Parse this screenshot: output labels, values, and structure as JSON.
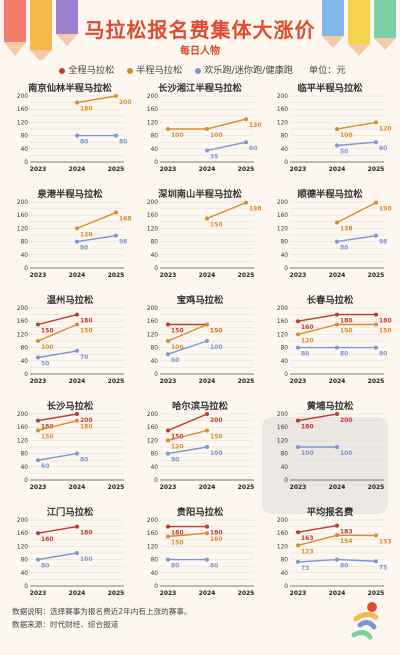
{
  "header": {
    "title": "马拉松报名费集体大涨价",
    "subtitle": "每日人物"
  },
  "legend": {
    "full": "全程马拉松",
    "half": "半程马拉松",
    "fun": "欢乐跑/迷你跑/健康跑",
    "unit": "单位：元"
  },
  "colors": {
    "full": "#c0392b",
    "half": "#d98b2b",
    "fun": "#7b96d4",
    "grid": "#dcdcdc",
    "title": "#e24a2f"
  },
  "footer": {
    "note": "数据说明：选择赛事为报名费近2年内有上涨的赛事。",
    "source": "数据来源：时代财经、综合报道"
  },
  "chart_data": [
    {
      "type": "line",
      "title": "南京仙林半程马拉松",
      "x": [
        "2023",
        "2024",
        "2025"
      ],
      "ylim": [
        0,
        200
      ],
      "yticks": [
        0,
        20,
        40,
        60,
        80,
        100,
        120,
        140,
        160,
        180,
        200
      ],
      "series": [
        {
          "key": "half",
          "values": [
            null,
            180,
            200
          ]
        },
        {
          "key": "fun",
          "values": [
            null,
            80,
            80
          ]
        }
      ]
    },
    {
      "type": "line",
      "title": "长沙湘江半程马拉松",
      "x": [
        "2023",
        "2024",
        "2025"
      ],
      "ylim": [
        0,
        200
      ],
      "yticks": [
        0,
        20,
        40,
        60,
        80,
        100,
        120,
        140,
        160,
        180,
        200
      ],
      "series": [
        {
          "key": "half",
          "values": [
            100,
            100,
            130
          ]
        },
        {
          "key": "fun",
          "values": [
            null,
            35,
            60
          ]
        }
      ]
    },
    {
      "type": "line",
      "title": "临平半程马拉松",
      "x": [
        "2023",
        "2024",
        "2025"
      ],
      "ylim": [
        0,
        200
      ],
      "yticks": [
        0,
        20,
        40,
        60,
        80,
        100,
        120,
        140,
        160,
        180,
        200
      ],
      "series": [
        {
          "key": "half",
          "values": [
            null,
            100,
            120
          ]
        },
        {
          "key": "fun",
          "values": [
            null,
            50,
            60
          ]
        }
      ]
    },
    {
      "type": "line",
      "title": "泉港半程马拉松",
      "x": [
        "2023",
        "2024",
        "2025"
      ],
      "ylim": [
        0,
        200
      ],
      "yticks": [
        0,
        20,
        40,
        60,
        80,
        100,
        120,
        140,
        160,
        180,
        200
      ],
      "series": [
        {
          "key": "half",
          "values": [
            null,
            120,
            168
          ]
        },
        {
          "key": "fun",
          "values": [
            null,
            80,
            98
          ]
        }
      ]
    },
    {
      "type": "line",
      "title": "深圳南山半程马拉松",
      "x": [
        "2023",
        "2024",
        "2025"
      ],
      "ylim": [
        0,
        200
      ],
      "yticks": [
        0,
        20,
        40,
        60,
        80,
        100,
        120,
        140,
        160,
        180,
        200
      ],
      "series": [
        {
          "key": "half",
          "values": [
            null,
            150,
            198
          ]
        }
      ]
    },
    {
      "type": "line",
      "title": "顺德半程马拉松",
      "x": [
        "2023",
        "2024",
        "2025"
      ],
      "ylim": [
        0,
        200
      ],
      "yticks": [
        0,
        20,
        40,
        60,
        80,
        100,
        120,
        140,
        160,
        180,
        200
      ],
      "series": [
        {
          "key": "half",
          "values": [
            null,
            138,
            198
          ]
        },
        {
          "key": "fun",
          "values": [
            null,
            80,
            98
          ]
        }
      ]
    },
    {
      "type": "line",
      "title": "温州马拉松",
      "x": [
        "2023",
        "2024"
      ],
      "ylim": [
        0,
        200
      ],
      "yticks": [
        0,
        20,
        40,
        60,
        80,
        100,
        120,
        140,
        160,
        180,
        200
      ],
      "series": [
        {
          "key": "full",
          "values": [
            150,
            180
          ]
        },
        {
          "key": "half",
          "values": [
            100,
            150
          ]
        },
        {
          "key": "fun",
          "values": [
            50,
            70
          ]
        }
      ]
    },
    {
      "type": "line",
      "title": "宝鸡马拉松",
      "x": [
        "2023",
        "2024"
      ],
      "ylim": [
        0,
        200
      ],
      "yticks": [
        0,
        20,
        40,
        60,
        80,
        100,
        120,
        140,
        160,
        180,
        200
      ],
      "series": [
        {
          "key": "full",
          "values": [
            150,
            150
          ]
        },
        {
          "key": "half",
          "values": [
            100,
            150
          ]
        },
        {
          "key": "fun",
          "values": [
            60,
            100
          ]
        }
      ]
    },
    {
      "type": "line",
      "title": "长春马拉松",
      "x": [
        "2023",
        "2024",
        "2025"
      ],
      "ylim": [
        0,
        200
      ],
      "yticks": [
        0,
        20,
        40,
        60,
        80,
        100,
        120,
        140,
        160,
        180,
        200
      ],
      "series": [
        {
          "key": "full",
          "values": [
            160,
            180,
            180
          ]
        },
        {
          "key": "half",
          "values": [
            120,
            150,
            150
          ]
        },
        {
          "key": "fun",
          "values": [
            80,
            80,
            80
          ]
        }
      ]
    },
    {
      "type": "line",
      "title": "长沙马拉松",
      "x": [
        "2023",
        "2024"
      ],
      "ylim": [
        0,
        200
      ],
      "yticks": [
        0,
        20,
        40,
        60,
        80,
        100,
        120,
        140,
        160,
        180,
        200
      ],
      "series": [
        {
          "key": "full",
          "values": [
            180,
            200
          ]
        },
        {
          "key": "half",
          "values": [
            150,
            180
          ]
        },
        {
          "key": "fun",
          "values": [
            60,
            80
          ]
        }
      ]
    },
    {
      "type": "line",
      "title": "哈尔滨马拉松",
      "x": [
        "2023",
        "2024"
      ],
      "ylim": [
        0,
        200
      ],
      "yticks": [
        0,
        20,
        40,
        60,
        80,
        100,
        120,
        140,
        160,
        180,
        200
      ],
      "series": [
        {
          "key": "full",
          "values": [
            150,
            200
          ]
        },
        {
          "key": "half",
          "values": [
            120,
            150
          ]
        },
        {
          "key": "fun",
          "values": [
            80,
            100
          ]
        }
      ]
    },
    {
      "type": "line",
      "title": "黄埔马拉松",
      "x": [
        "2023",
        "2024"
      ],
      "ylim": [
        0,
        200
      ],
      "yticks": [
        0,
        20,
        40,
        60,
        80,
        100,
        120,
        140,
        160,
        180,
        200
      ],
      "series": [
        {
          "key": "full",
          "values": [
            180,
            200
          ]
        },
        {
          "key": "fun",
          "values": [
            100,
            100
          ]
        }
      ]
    },
    {
      "type": "line",
      "title": "江门马拉松",
      "x": [
        "2023",
        "2024"
      ],
      "ylim": [
        0,
        200
      ],
      "yticks": [
        0,
        20,
        40,
        60,
        80,
        100,
        120,
        140,
        160,
        180,
        200
      ],
      "series": [
        {
          "key": "full",
          "values": [
            160,
            180
          ]
        },
        {
          "key": "fun",
          "values": [
            80,
            100
          ]
        }
      ]
    },
    {
      "type": "line",
      "title": "贵阳马拉松",
      "x": [
        "2023",
        "2024"
      ],
      "ylim": [
        0,
        200
      ],
      "yticks": [
        0,
        20,
        40,
        60,
        80,
        100,
        120,
        140,
        160,
        180,
        200
      ],
      "series": [
        {
          "key": "full",
          "values": [
            180,
            180
          ]
        },
        {
          "key": "half",
          "values": [
            150,
            160
          ]
        },
        {
          "key": "fun",
          "values": [
            80,
            80
          ]
        }
      ]
    },
    {
      "type": "line",
      "title": "平均报名费",
      "x": [
        "2023",
        "2024",
        "2025"
      ],
      "ylim": [
        0,
        200
      ],
      "yticks": [
        0,
        20,
        40,
        60,
        80,
        100,
        120,
        140,
        160,
        180,
        200
      ],
      "series": [
        {
          "key": "full",
          "values": [
            163,
            183,
            null
          ]
        },
        {
          "key": "half",
          "values": [
            123,
            154,
            153
          ]
        },
        {
          "key": "fun",
          "values": [
            73,
            80,
            75
          ]
        }
      ]
    }
  ]
}
